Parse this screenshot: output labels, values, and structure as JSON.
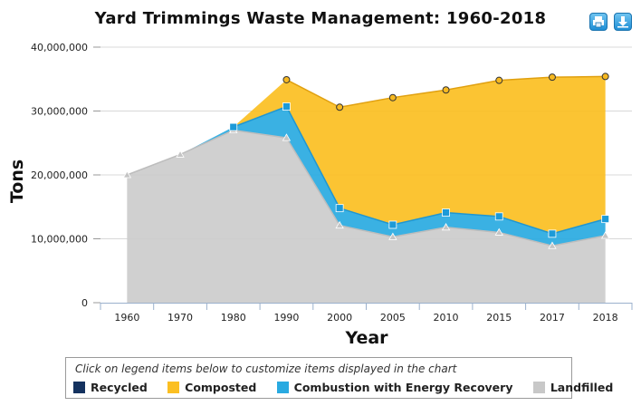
{
  "chart_data": {
    "type": "area",
    "stacked": true,
    "title": "Yard Trimmings Waste Management: 1960-2018",
    "xlabel": "Year",
    "ylabel": "Tons",
    "ylim": [
      0,
      40000000
    ],
    "y_ticks": [
      0,
      10000000,
      20000000,
      30000000,
      40000000
    ],
    "y_tick_labels": [
      "0",
      "10,000,000",
      "20,000,000",
      "30,000,000",
      "40,000,000"
    ],
    "categories": [
      "1960",
      "1970",
      "1980",
      "1990",
      "2000",
      "2005",
      "2010",
      "2015",
      "2017",
      "2018"
    ],
    "series": [
      {
        "name": "Landfilled",
        "color": "#cccccc",
        "values": [
          20000000,
          23200000,
          27000000,
          25800000,
          12100000,
          10300000,
          11800000,
          11000000,
          8900000,
          10500000
        ]
      },
      {
        "name": "Combustion with Energy Recovery",
        "color": "#29aae1",
        "values": [
          0,
          0,
          500000,
          4900000,
          2700000,
          1900000,
          2300000,
          2500000,
          1900000,
          2600000
        ]
      },
      {
        "name": "Composted",
        "color": "#fbbf22",
        "values": [
          0,
          0,
          0,
          4200000,
          15800000,
          19900000,
          19200000,
          21300000,
          24500000,
          22300000
        ]
      },
      {
        "name": "Recycled",
        "color": "#14325f",
        "values": [
          0,
          0,
          0,
          0,
          0,
          0,
          0,
          0,
          0,
          0
        ]
      }
    ]
  },
  "legend": {
    "hint": "Click on legend items below to customize items displayed in the chart",
    "items": [
      {
        "label": "Recycled",
        "color": "#14325f"
      },
      {
        "label": "Composted",
        "color": "#fbbf22"
      },
      {
        "label": "Combustion with Energy Recovery",
        "color": "#29aae1"
      },
      {
        "label": "Landfilled",
        "color": "#c8c8c8"
      }
    ]
  },
  "toolbar": {
    "print_icon": "print-icon",
    "download_icon": "download-icon"
  }
}
